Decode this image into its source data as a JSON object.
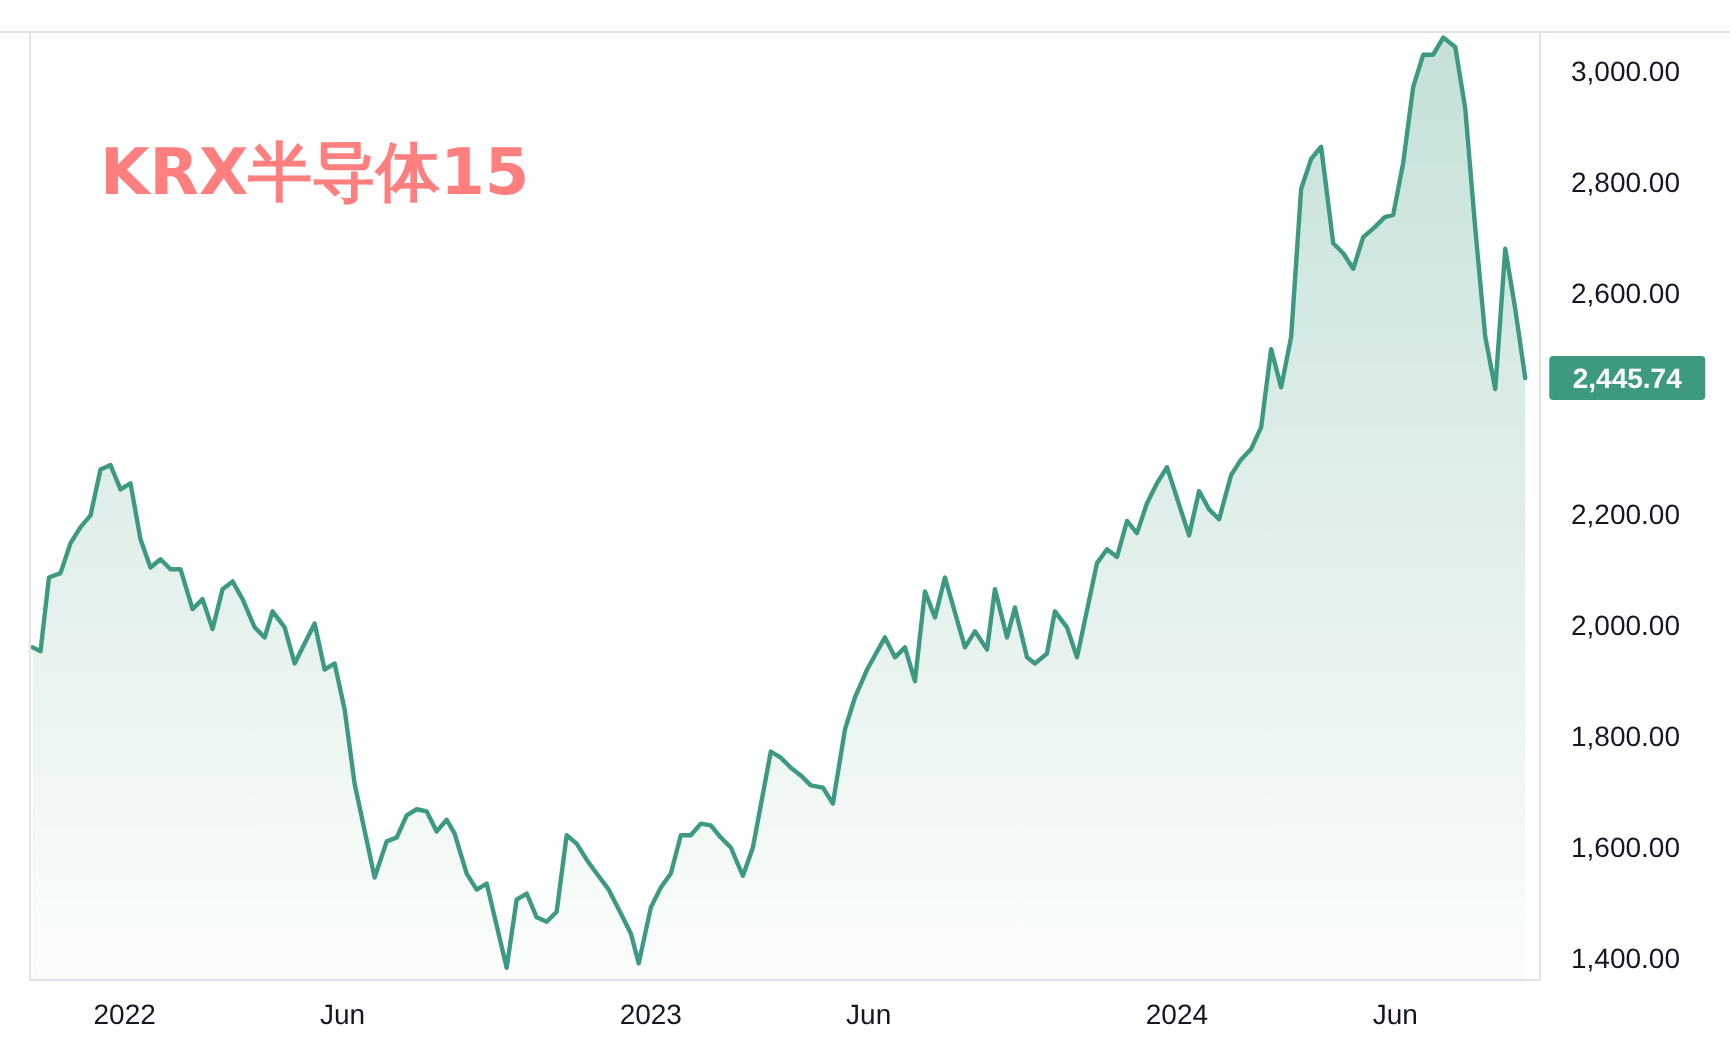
{
  "chart_data": {
    "type": "area",
    "title": "KRX半导体15",
    "color": "#3d9a80",
    "x": [
      2021.825,
      2021.84,
      2021.856,
      2021.878,
      2021.897,
      2021.916,
      2021.935,
      2021.954,
      2021.973,
      2021.992,
      2022.011,
      2022.03,
      2022.049,
      2022.068,
      2022.087,
      2022.106,
      2022.129,
      2022.148,
      2022.167,
      2022.186,
      2022.205,
      2022.224,
      2022.247,
      2022.266,
      2022.281,
      2022.304,
      2022.323,
      2022.361,
      2022.38,
      2022.399,
      2022.418,
      2022.437,
      2022.475,
      2022.498,
      2022.517,
      2022.536,
      2022.555,
      2022.574,
      2022.593,
      2022.612,
      2022.627,
      2022.65,
      2022.669,
      2022.688,
      2022.726,
      2022.745,
      2022.764,
      2022.783,
      2022.802,
      2022.821,
      2022.84,
      2022.859,
      2022.878,
      2022.897,
      2022.92,
      2022.943,
      2022.962,
      2022.977,
      2023.0,
      2023.019,
      2023.038,
      2023.057,
      2023.076,
      2023.095,
      2023.114,
      2023.133,
      2023.152,
      2023.175,
      2023.194,
      2023.228,
      2023.247,
      2023.266,
      2023.285,
      2023.304,
      2023.327,
      2023.346,
      2023.369,
      2023.388,
      2023.411,
      2023.445,
      2023.464,
      2023.483,
      2023.502,
      2023.521,
      2023.54,
      2023.559,
      2023.597,
      2023.616,
      2023.639,
      2023.654,
      2023.677,
      2023.692,
      2023.715,
      2023.73,
      2023.753,
      2023.768,
      2023.791,
      2023.81,
      2023.848,
      2023.867,
      2023.886,
      2023.905,
      2023.924,
      2023.943,
      2023.962,
      2023.981,
      2024.023,
      2024.042,
      2024.061,
      2024.08,
      2024.103,
      2024.122,
      2024.141,
      2024.16,
      2024.179,
      2024.198,
      2024.217,
      2024.236,
      2024.255,
      2024.274,
      2024.297,
      2024.316,
      2024.335,
      2024.354,
      2024.376,
      2024.395,
      2024.411,
      2024.43,
      2024.449,
      2024.468,
      2024.487,
      2024.506,
      2024.529,
      2024.548,
      2024.567,
      2024.586,
      2024.605,
      2024.624,
      2024.643,
      2024.662
    ],
    "values": [
      1960,
      1953,
      2086,
      2094,
      2148,
      2177,
      2198,
      2281,
      2289,
      2245,
      2256,
      2155,
      2104,
      2119,
      2101,
      2101,
      2029,
      2047,
      1993,
      2065,
      2079,
      2047,
      1996,
      1978,
      2025,
      1996,
      1931,
      2003,
      1920,
      1931,
      1848,
      1714,
      1545,
      1610,
      1617,
      1657,
      1668,
      1664,
      1628,
      1649,
      1624,
      1552,
      1523,
      1534,
      1382,
      1505,
      1516,
      1473,
      1465,
      1483,
      1621,
      1606,
      1577,
      1552,
      1523,
      1480,
      1444,
      1390,
      1491,
      1527,
      1552,
      1621,
      1621,
      1642,
      1639,
      1617,
      1599,
      1548,
      1599,
      1772,
      1761,
      1743,
      1729,
      1711,
      1707,
      1678,
      1812,
      1870,
      1920,
      1978,
      1942,
      1960,
      1899,
      2061,
      2014,
      2086,
      1960,
      1989,
      1956,
      2065,
      1978,
      2032,
      1942,
      1931,
      1949,
      2025,
      1996,
      1942,
      2112,
      2137,
      2123,
      2188,
      2166,
      2220,
      2256,
      2285,
      2162,
      2242,
      2209,
      2191,
      2271,
      2299,
      2318,
      2357,
      2498,
      2429,
      2520,
      2787,
      2841,
      2863,
      2689,
      2671,
      2643,
      2700,
      2718,
      2736,
      2740,
      2834,
      2971,
      3029,
      3029,
      3060,
      3043,
      2931,
      2715,
      2520,
      2426,
      2679,
      2570,
      2445.74
    ],
    "xlim": [
      2021.82,
      2024.69
    ],
    "xticks": [
      {
        "value": 2022,
        "label": "2022"
      },
      {
        "value": 2022.414,
        "label": "Jun"
      },
      {
        "value": 2023,
        "label": "2023"
      },
      {
        "value": 2023.414,
        "label": "Jun"
      },
      {
        "value": 2024,
        "label": "2024"
      },
      {
        "value": 2024.415,
        "label": "Jun"
      }
    ],
    "ylim": [
      1360,
      3070
    ],
    "yticks": [
      {
        "value": 1400,
        "label": "1,400.00"
      },
      {
        "value": 1600,
        "label": "1,600.00"
      },
      {
        "value": 1800,
        "label": "1,800.00"
      },
      {
        "value": 2000,
        "label": "2,000.00"
      },
      {
        "value": 2200,
        "label": "2,200.00"
      },
      {
        "value": 2600,
        "label": "2,600.00"
      },
      {
        "value": 2800,
        "label": "2,800.00"
      },
      {
        "value": 3000,
        "label": "3,000.00"
      }
    ],
    "annotations": [
      {
        "text": "2,445.74",
        "x": 2024.662,
        "y": 2445.74
      }
    ],
    "grid": false
  }
}
